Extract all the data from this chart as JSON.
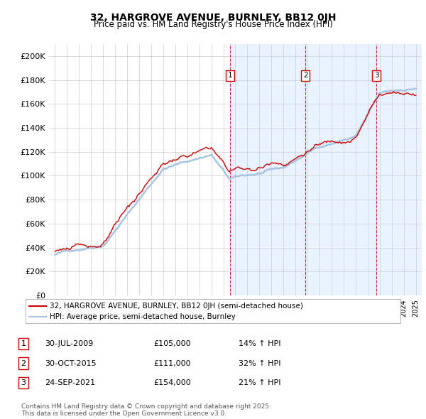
{
  "title": "32, HARGROVE AVENUE, BURNLEY, BB12 0JH",
  "subtitle": "Price paid vs. HM Land Registry's House Price Index (HPI)",
  "legend_line1": "32, HARGROVE AVENUE, BURNLEY, BB12 0JH (semi-detached house)",
  "legend_line2": "HPI: Average price, semi-detached house, Burnley",
  "transactions": [
    {
      "num": 1,
      "date": "30-JUL-2009",
      "price": "£105,000",
      "pct": "14% ↑ HPI",
      "x_year": 2009.58
    },
    {
      "num": 2,
      "date": "30-OCT-2015",
      "price": "£111,000",
      "pct": "32% ↑ HPI",
      "x_year": 2015.83
    },
    {
      "num": 3,
      "date": "24-SEP-2021",
      "price": "£154,000",
      "pct": "21% ↑ HPI",
      "x_year": 2021.73
    }
  ],
  "footer": "Contains HM Land Registry data © Crown copyright and database right 2025.\nThis data is licensed under the Open Government Licence v3.0.",
  "hpi_color": "#a8c4e0",
  "price_color": "#cc0000",
  "vline_color": "#cc0000",
  "shade_color": "#ddeeff",
  "background_color": "#ffffff",
  "grid_color": "#cccccc",
  "ylim": [
    0,
    210000
  ],
  "yticks": [
    0,
    20000,
    40000,
    60000,
    80000,
    100000,
    120000,
    140000,
    160000,
    180000,
    200000
  ],
  "xlim_start": 1994.5,
  "xlim_end": 2025.5
}
